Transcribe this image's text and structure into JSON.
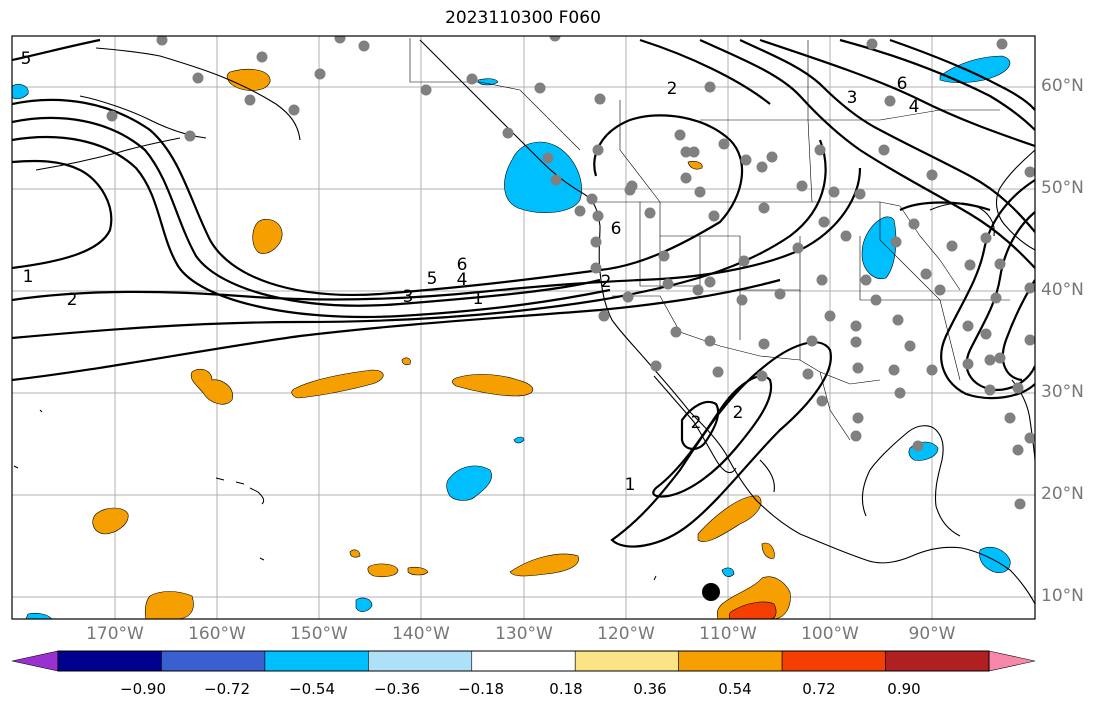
{
  "title": "2023110300 F060",
  "lon_ticks": [
    "170°W",
    "160°W",
    "150°W",
    "140°W",
    "130°W",
    "120°W",
    "110°W",
    "100°W",
    "90°W"
  ],
  "lat_ticks": [
    "60°N",
    "50°N",
    "40°N",
    "30°N",
    "20°N",
    "10°N"
  ],
  "colorbar": {
    "labels": [
      "−0.90",
      "−0.72",
      "−0.54",
      "−0.36",
      "−0.18",
      "0.18",
      "0.36",
      "0.54",
      "0.72",
      "0.90"
    ],
    "colors": [
      "#9b30d0",
      "#000090",
      "#3a5fd0",
      "#00bfff",
      "#aee0f8",
      "#ffffff",
      "#fbe486",
      "#f5a000",
      "#f53f00",
      "#b02020",
      "#f888aa"
    ]
  },
  "contour_labels": [
    "5",
    "2",
    "3",
    "6",
    "4",
    "1",
    "2",
    "6",
    "5",
    "3",
    "4",
    "1",
    "6",
    "2",
    "1",
    "2",
    "2"
  ],
  "fill_colors": {
    "orange": "#f5a000",
    "blue": "#00bfff",
    "red": "#f53f00",
    "station": "#808080"
  }
}
